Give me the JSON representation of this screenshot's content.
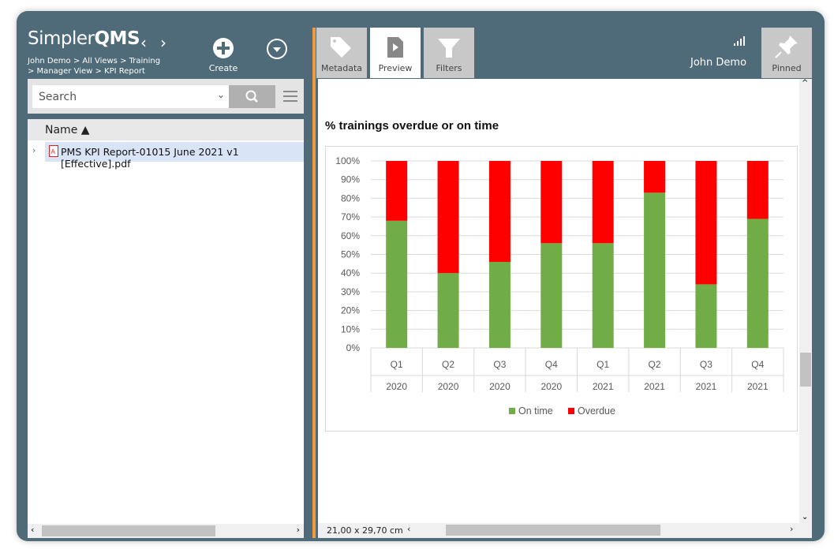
{
  "app": {
    "logo_text": "Simpler",
    "logo_bold": "QMS",
    "breadcrumb_line1": "John Demo > All Views > Training",
    "breadcrumb_line2": "> Manager View > KPI Report",
    "create_label": "Create",
    "user": "John Demo"
  },
  "search": {
    "placeholder": "Search"
  },
  "list": {
    "column": "Name",
    "items": [
      {
        "name": "PMS KPI Report-01015 June 2021 v1 [Effective].pdf"
      }
    ]
  },
  "tabs": [
    {
      "label": "Metadata",
      "icon": "tag-icon"
    },
    {
      "label": "Preview",
      "icon": "preview-icon",
      "active": true
    },
    {
      "label": "Filters",
      "icon": "filter-icon"
    }
  ],
  "pinned_label": "Pinned",
  "status": {
    "page_size": "21,00 x 29,70 cm"
  },
  "colors": {
    "frame": "#4f6a78",
    "on_time": "#70ad47",
    "overdue": "#ff0000",
    "accent": "#f39a3a"
  },
  "chart_data": {
    "type": "bar",
    "stacked": true,
    "title": "% trainings overdue or on time",
    "categories": [
      [
        "Q1",
        "2020"
      ],
      [
        "Q2",
        "2020"
      ],
      [
        "Q3",
        "2020"
      ],
      [
        "Q4",
        "2020"
      ],
      [
        "Q1",
        "2021"
      ],
      [
        "Q2",
        "2021"
      ],
      [
        "Q3",
        "2021"
      ],
      [
        "Q4",
        "2021"
      ]
    ],
    "series": [
      {
        "name": "On time",
        "values": [
          68,
          40,
          46,
          56,
          56,
          83,
          34,
          69
        ]
      },
      {
        "name": "Overdue",
        "values": [
          32,
          60,
          54,
          44,
          44,
          17,
          66,
          31
        ]
      }
    ],
    "yticks": [
      "0%",
      "10%",
      "20%",
      "30%",
      "40%",
      "50%",
      "60%",
      "70%",
      "80%",
      "90%",
      "100%"
    ],
    "ylim": [
      0,
      100
    ],
    "grid": true,
    "legend": "bottom"
  }
}
